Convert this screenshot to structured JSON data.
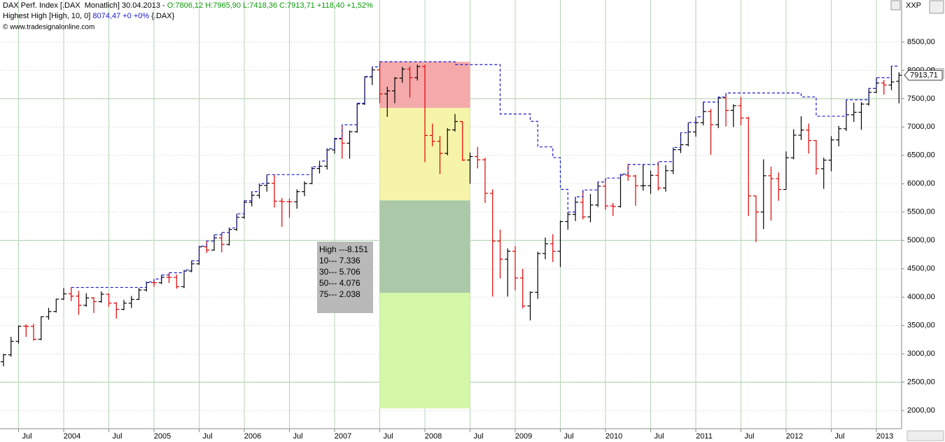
{
  "chart_data": {
    "type": "ohlc",
    "title": "DAX Perf. Index [.DAX  Monatlich] 30.04.2013 -",
    "quote": "O:7806,12 H:7965,90 L:7418,36 C:7913,71 +118,40 +1,52%",
    "source": "© www.tradesignalonline.com",
    "symbol_box": "XXP",
    "up_color": "#000000",
    "down_color": "#e00000",
    "grid": true,
    "categories": [
      null,
      null,
      "Jul",
      null,
      null,
      null,
      null,
      null,
      "2004",
      null,
      null,
      null,
      null,
      null,
      "Jul",
      null,
      null,
      null,
      null,
      null,
      "2005",
      null,
      null,
      null,
      null,
      null,
      "Jul",
      null,
      null,
      null,
      null,
      null,
      "2006",
      null,
      null,
      null,
      null,
      null,
      "Jul",
      null,
      null,
      null,
      null,
      null,
      "2007",
      null,
      null,
      null,
      null,
      null,
      "Jul",
      null,
      null,
      null,
      null,
      null,
      "2008",
      null,
      null,
      null,
      null,
      null,
      "Jul",
      null,
      null,
      null,
      null,
      null,
      "2009",
      null,
      null,
      null,
      null,
      null,
      "Jul",
      null,
      null,
      null,
      null,
      null,
      "2010",
      null,
      null,
      null,
      null,
      null,
      "Jul",
      null,
      null,
      null,
      null,
      null,
      "2011",
      null,
      null,
      null,
      null,
      null,
      "Jul",
      null,
      null,
      null,
      null,
      null,
      "2012",
      null,
      null,
      null,
      null,
      null,
      "Jul",
      null,
      null,
      null,
      null,
      null,
      "2013",
      null,
      null,
      null
    ],
    "ohlc": [
      [
        2860,
        3000,
        2780,
        2983
      ],
      [
        2983,
        3300,
        2950,
        3221
      ],
      [
        3221,
        3500,
        3180,
        3487
      ],
      [
        3487,
        3520,
        3300,
        3484
      ],
      [
        3484,
        3530,
        3230,
        3257
      ],
      [
        3257,
        3660,
        3240,
        3655
      ],
      [
        3655,
        3810,
        3600,
        3746
      ],
      [
        3746,
        3970,
        3730,
        3965
      ],
      [
        3965,
        4160,
        3950,
        4058
      ],
      [
        4058,
        4170,
        3930,
        4018
      ],
      [
        4018,
        4110,
        3690,
        3856
      ],
      [
        3856,
        4070,
        3830,
        3985
      ],
      [
        3985,
        4000,
        3720,
        3921
      ],
      [
        3921,
        4100,
        3900,
        4052
      ],
      [
        4052,
        4060,
        3830,
        3895
      ],
      [
        3895,
        3910,
        3620,
        3785
      ],
      [
        3785,
        3950,
        3770,
        3893
      ],
      [
        3893,
        4020,
        3810,
        3960
      ],
      [
        3960,
        4160,
        3950,
        4126
      ],
      [
        4126,
        4270,
        4100,
        4256
      ],
      [
        4256,
        4320,
        4180,
        4254
      ],
      [
        4254,
        4390,
        4230,
        4350
      ],
      [
        4350,
        4430,
        4250,
        4349
      ],
      [
        4349,
        4400,
        4150,
        4185
      ],
      [
        4185,
        4480,
        4160,
        4460
      ],
      [
        4460,
        4640,
        4440,
        4587
      ],
      [
        4587,
        4900,
        4570,
        4887
      ],
      [
        4887,
        4990,
        4780,
        4830
      ],
      [
        4830,
        5100,
        4820,
        5044
      ],
      [
        5044,
        5140,
        4790,
        4929
      ],
      [
        4929,
        5220,
        4910,
        5193
      ],
      [
        5193,
        5470,
        5170,
        5408
      ],
      [
        5408,
        5700,
        5380,
        5674
      ],
      [
        5674,
        5860,
        5600,
        5796
      ],
      [
        5796,
        6000,
        5740,
        5970
      ],
      [
        5970,
        6160,
        5860,
        6009
      ],
      [
        6009,
        6160,
        5580,
        5692
      ],
      [
        5692,
        5750,
        5240,
        5683
      ],
      [
        5683,
        5740,
        5400,
        5682
      ],
      [
        5682,
        5900,
        5560,
        5860
      ],
      [
        5860,
        6040,
        5780,
        6004
      ],
      [
        6004,
        6300,
        5990,
        6268
      ],
      [
        6268,
        6400,
        6180,
        6309
      ],
      [
        6309,
        6620,
        6250,
        6597
      ],
      [
        6597,
        6800,
        6530,
        6789
      ],
      [
        6789,
        7040,
        6440,
        6715
      ],
      [
        6715,
        6940,
        6440,
        6917
      ],
      [
        6917,
        7420,
        6900,
        7409
      ],
      [
        7409,
        7890,
        7390,
        7883
      ],
      [
        7883,
        8060,
        7740,
        8007
      ],
      [
        8007,
        8151,
        7420,
        7584
      ],
      [
        7584,
        7710,
        7180,
        7638
      ],
      [
        7638,
        7880,
        7420,
        7862
      ],
      [
        7862,
        8060,
        7780,
        8020
      ],
      [
        8020,
        8070,
        7520,
        7871
      ],
      [
        7871,
        8100,
        7820,
        8067
      ],
      [
        8067,
        8100,
        6380,
        6851
      ],
      [
        6851,
        7060,
        6660,
        6748
      ],
      [
        6748,
        6840,
        6170,
        6535
      ],
      [
        6535,
        6980,
        6500,
        6949
      ],
      [
        6949,
        7230,
        6920,
        7097
      ],
      [
        7097,
        7100,
        6400,
        6418
      ],
      [
        6418,
        6550,
        6000,
        6479
      ],
      [
        6479,
        6650,
        6270,
        6422
      ],
      [
        6422,
        6460,
        5660,
        5831
      ],
      [
        5831,
        5900,
        4010,
        4988
      ],
      [
        4988,
        5190,
        4330,
        4669
      ],
      [
        4669,
        4860,
        4010,
        4810
      ],
      [
        4810,
        4900,
        4120,
        4338
      ],
      [
        4338,
        4500,
        3800,
        3844
      ],
      [
        3844,
        4100,
        3590,
        4085
      ],
      [
        4085,
        4800,
        3970,
        4770
      ],
      [
        4770,
        5050,
        4670,
        4941
      ],
      [
        4941,
        5110,
        4620,
        4809
      ],
      [
        4809,
        5350,
        4530,
        5332
      ],
      [
        5332,
        5500,
        5190,
        5458
      ],
      [
        5458,
        5770,
        5340,
        5675
      ],
      [
        5675,
        5890,
        5370,
        5415
      ],
      [
        5415,
        5820,
        5320,
        5625
      ],
      [
        5625,
        6030,
        5590,
        5957
      ],
      [
        5957,
        6100,
        5540,
        5608
      ],
      [
        5608,
        5660,
        5430,
        5598
      ],
      [
        5598,
        6170,
        5580,
        6154
      ],
      [
        6154,
        6340,
        6050,
        6136
      ],
      [
        6136,
        6160,
        5610,
        5964
      ],
      [
        5964,
        6340,
        5880,
        5966
      ],
      [
        5966,
        6230,
        5820,
        6148
      ],
      [
        6148,
        6390,
        5880,
        5925
      ],
      [
        5925,
        6330,
        5860,
        6229
      ],
      [
        6229,
        6640,
        6170,
        6601
      ],
      [
        6601,
        6900,
        6540,
        6688
      ],
      [
        6688,
        7080,
        6660,
        6914
      ],
      [
        6914,
        7180,
        6830,
        7077
      ],
      [
        7077,
        7440,
        7030,
        7272
      ],
      [
        7272,
        7320,
        6510,
        7041
      ],
      [
        7041,
        7530,
        6980,
        7514
      ],
      [
        7514,
        7600,
        7010,
        7294
      ],
      [
        7294,
        7400,
        7000,
        7376
      ],
      [
        7376,
        7530,
        7030,
        7159
      ],
      [
        7159,
        7180,
        5430,
        5785
      ],
      [
        5785,
        5790,
        4970,
        5502
      ],
      [
        5502,
        6430,
        5200,
        6141
      ],
      [
        6141,
        6300,
        5350,
        6089
      ],
      [
        6089,
        6200,
        5700,
        5898
      ],
      [
        5898,
        6570,
        5900,
        6458
      ],
      [
        6458,
        6960,
        6430,
        6856
      ],
      [
        6856,
        7190,
        6770,
        6947
      ],
      [
        6947,
        7060,
        6530,
        6761
      ],
      [
        6761,
        6770,
        6160,
        6264
      ],
      [
        6264,
        6460,
        5910,
        6416
      ],
      [
        6416,
        6840,
        6220,
        6773
      ],
      [
        6773,
        7020,
        6660,
        6970
      ],
      [
        6970,
        7480,
        6930,
        7216
      ],
      [
        7216,
        7430,
        7090,
        7260
      ],
      [
        7260,
        7440,
        6950,
        7405
      ],
      [
        7405,
        7680,
        7380,
        7612
      ],
      [
        7612,
        7870,
        7600,
        7776
      ],
      [
        7776,
        7830,
        7570,
        7741
      ],
      [
        7741,
        8074.47,
        7650,
        7795
      ],
      [
        7806.12,
        7965.9,
        7418.36,
        7913.71
      ]
    ],
    "last_price_label": "7913,71",
    "indicator": {
      "name": "Highest High [High, 10, 0]",
      "quote": "8074,47 +0 +0%",
      "symbol": "{.DAX}",
      "color": "#1a1acc",
      "values": [
        null,
        null,
        null,
        null,
        null,
        null,
        null,
        null,
        null,
        4170,
        4170,
        4170,
        4170,
        4170,
        4170,
        4170,
        4170,
        4170,
        4170,
        4270,
        4320,
        4390,
        4430,
        4430,
        4480,
        4640,
        4900,
        4990,
        5100,
        5140,
        5220,
        5470,
        5700,
        5860,
        6000,
        6160,
        6160,
        6160,
        6160,
        6160,
        6160,
        6300,
        6400,
        6620,
        6800,
        7040,
        7040,
        7420,
        7890,
        8060,
        8151,
        8151,
        8151,
        8151,
        8151,
        8151,
        8151,
        8151,
        8151,
        8151,
        8100,
        8100,
        8100,
        8100,
        8100,
        8100,
        7230,
        7230,
        7230,
        7230,
        7100,
        6650,
        6650,
        6460,
        5900,
        5500,
        5770,
        5890,
        5890,
        6030,
        6100,
        6100,
        6170,
        6340,
        6340,
        6340,
        6340,
        6390,
        6390,
        6640,
        6900,
        7080,
        7180,
        7440,
        7440,
        7530,
        7600,
        7600,
        7600,
        7600,
        7600,
        7600,
        7600,
        7600,
        7600,
        7600,
        7530,
        7530,
        7190,
        7190,
        7190,
        7190,
        7480,
        7480,
        7480,
        7680,
        7870,
        7870,
        8074.47,
        8074.47
      ]
    },
    "zone_x": [
      50,
      62
    ],
    "zones": [
      {
        "label": "High ---8.151",
        "from": 8151,
        "to": 7336,
        "color": "#f4aaaa"
      },
      {
        "label": "10--- 7.336",
        "from": 7336,
        "to": 5706,
        "color": "#f6f4a8"
      },
      {
        "label": "30--- 5.706",
        "from": 5706,
        "to": 4076,
        "color": "#abc9a8"
      },
      {
        "label": "50--- 4.076",
        "from": 4076,
        "to": 2038,
        "color": "#d4f7a8"
      }
    ],
    "zone_tail_label": "75--- 2.038",
    "ylim": [
      1680,
      9240
    ],
    "yticks": [
      {
        "value": 2000,
        "label": "2000,00"
      },
      {
        "value": 2500,
        "label": "2500,00"
      },
      {
        "value": 3000,
        "label": "3000,00"
      },
      {
        "value": 3500,
        "label": "3500,00"
      },
      {
        "value": 4000,
        "label": "4000,00"
      },
      {
        "value": 4500,
        "label": "4500,00"
      },
      {
        "value": 5000,
        "label": "5000,00"
      },
      {
        "value": 5500,
        "label": "5500,00"
      },
      {
        "value": 6000,
        "label": "6000,00"
      },
      {
        "value": 6500,
        "label": "6500,00"
      },
      {
        "value": 7000,
        "label": "7000,00"
      },
      {
        "value": 7500,
        "label": "7500,00"
      },
      {
        "value": 8000,
        "label": "8000,00"
      },
      {
        "value": 8500,
        "label": "8500,00"
      }
    ]
  }
}
